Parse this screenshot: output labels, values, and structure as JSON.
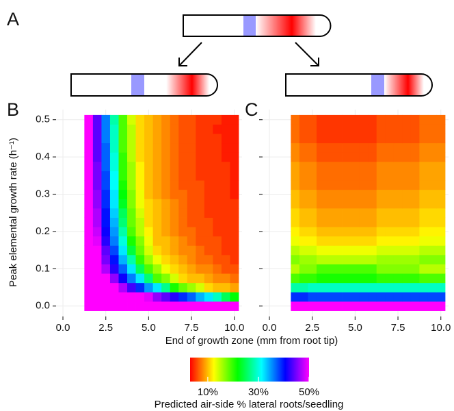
{
  "diagram": {
    "label": "A"
  },
  "xlabel": "End of growth zone (mm from root tip)",
  "ylabel": "Peak elemental growth rate (h⁻¹)",
  "colorbar": {
    "title": "Predicted air-side % lateral roots/seedling",
    "lim": [
      3,
      50
    ],
    "ticks": [
      {
        "value": 10,
        "label": "10%"
      },
      {
        "value": 30,
        "label": "30%"
      },
      {
        "value": 50,
        "label": "50%"
      }
    ],
    "colors": [
      "#ff0000",
      "#ffff00",
      "#00ff00",
      "#00ffff",
      "#0000ff",
      "#ff00ff"
    ]
  },
  "chart_data": [
    {
      "type": "heatmap",
      "panel_label": "B",
      "show_ytick_labels": true,
      "grid": true,
      "xlim": [
        -0.4,
        10.45
      ],
      "ylim": [
        -0.028,
        0.527
      ],
      "xticks": [
        {
          "value": 0,
          "label": "0.0"
        },
        2.5,
        {
          "value": 5,
          "label": "5.0"
        },
        7.5,
        {
          "value": 10,
          "label": "10.0"
        }
      ],
      "yticks": [
        {
          "value": 0,
          "label": "0.0"
        },
        0.1,
        0.2,
        0.3,
        0.4,
        0.5
      ],
      "x": [
        1.5,
        2,
        2.5,
        3,
        3.5,
        4,
        4.5,
        5,
        5.5,
        6,
        6.5,
        7,
        7.5,
        8,
        8.5,
        9,
        9.5,
        10
      ],
      "y": [
        0,
        0.025,
        0.05,
        0.075,
        0.1,
        0.125,
        0.15,
        0.175,
        0.2,
        0.225,
        0.25,
        0.275,
        0.3,
        0.325,
        0.35,
        0.375,
        0.4,
        0.425,
        0.45,
        0.475,
        0.5
      ],
      "z": [
        [
          50,
          50,
          50,
          50,
          50,
          50,
          50,
          50,
          50,
          50,
          50,
          50,
          50,
          50,
          50,
          50,
          50,
          50
        ],
        [
          50,
          50,
          50,
          50,
          50,
          50,
          50,
          49,
          46,
          44,
          42,
          39,
          37,
          34,
          32,
          29,
          25,
          22
        ],
        [
          50,
          50,
          50,
          50,
          47,
          43,
          39,
          35,
          32,
          27,
          21,
          18,
          16,
          14,
          11,
          10,
          10,
          9
        ],
        [
          50,
          50,
          50,
          46,
          41,
          36,
          32,
          26,
          19,
          17,
          14,
          11,
          10,
          10,
          9,
          8,
          8,
          7
        ],
        [
          50,
          50,
          47,
          42,
          37,
          32,
          25,
          19,
          16,
          13,
          11,
          10,
          9,
          8,
          8,
          7,
          6,
          6
        ],
        [
          50,
          50,
          45,
          40,
          34,
          28,
          20,
          16,
          13,
          11,
          10,
          9,
          8,
          7,
          7,
          6,
          6,
          5
        ],
        [
          50,
          50,
          44,
          38,
          32,
          24,
          18,
          14,
          11,
          10,
          9,
          8,
          8,
          7,
          6,
          6,
          5,
          5
        ],
        [
          50,
          49,
          42,
          36,
          30,
          21,
          17,
          13,
          10,
          10,
          9,
          8,
          7,
          6,
          6,
          6,
          5,
          5
        ],
        [
          50,
          48,
          41,
          35,
          28,
          19,
          15,
          12,
          10,
          9,
          8,
          7,
          7,
          6,
          6,
          5,
          5,
          5
        ],
        [
          50,
          47,
          40,
          34,
          26,
          18,
          15,
          11,
          10,
          9,
          8,
          7,
          6,
          6,
          6,
          5,
          5,
          5
        ],
        [
          50,
          47,
          40,
          33,
          25,
          18,
          14,
          11,
          10,
          9,
          8,
          7,
          6,
          6,
          5,
          5,
          5,
          5
        ],
        [
          50,
          46,
          39,
          32,
          23,
          17,
          13,
          11,
          10,
          9,
          8,
          7,
          6,
          6,
          5,
          5,
          5,
          5
        ],
        [
          50,
          46,
          39,
          32,
          22,
          17,
          13,
          10,
          9,
          8,
          7,
          7,
          6,
          6,
          5,
          5,
          5,
          4
        ],
        [
          50,
          45,
          38,
          31,
          21,
          16,
          12,
          10,
          9,
          8,
          7,
          6,
          6,
          6,
          5,
          5,
          5,
          4
        ],
        [
          50,
          45,
          38,
          31,
          20,
          16,
          12,
          10,
          9,
          8,
          7,
          6,
          6,
          5,
          5,
          5,
          5,
          4
        ],
        [
          50,
          45,
          37,
          30,
          20,
          16,
          12,
          10,
          9,
          8,
          7,
          6,
          6,
          5,
          5,
          5,
          5,
          4
        ],
        [
          50,
          44,
          37,
          30,
          20,
          15,
          11,
          10,
          9,
          8,
          7,
          6,
          6,
          5,
          5,
          5,
          4,
          4
        ],
        [
          50,
          44,
          37,
          29,
          19,
          15,
          11,
          10,
          9,
          8,
          7,
          6,
          6,
          5,
          5,
          5,
          4,
          4
        ],
        [
          50,
          44,
          36,
          29,
          19,
          15,
          11,
          10,
          9,
          8,
          7,
          6,
          6,
          5,
          5,
          5,
          4,
          4
        ],
        [
          50,
          44,
          36,
          29,
          19,
          15,
          11,
          10,
          9,
          8,
          7,
          6,
          6,
          5,
          5,
          4,
          4,
          4
        ],
        [
          50,
          44,
          36,
          28,
          19,
          14,
          11,
          10,
          9,
          8,
          7,
          6,
          6,
          5,
          5,
          5,
          4,
          4
        ]
      ]
    },
    {
      "type": "heatmap",
      "panel_label": "C",
      "show_ytick_labels": false,
      "grid": true,
      "xlim": [
        -0.4,
        10.45
      ],
      "ylim": [
        -0.028,
        0.527
      ],
      "xticks": [
        {
          "value": 0,
          "label": "0.0"
        },
        2.5,
        {
          "value": 5,
          "label": "5.0"
        },
        7.5,
        {
          "value": 10,
          "label": "10.0"
        }
      ],
      "yticks": [
        0,
        0.1,
        0.2,
        0.3,
        0.4,
        0.5
      ],
      "x": [
        1.5,
        2,
        2.5,
        3,
        3.5,
        4,
        4.5,
        5,
        5.5,
        6,
        6.5,
        7,
        7.5,
        8,
        8.5,
        9,
        9.5,
        10
      ],
      "y": [
        0,
        0.025,
        0.05,
        0.075,
        0.1,
        0.125,
        0.15,
        0.175,
        0.2,
        0.225,
        0.25,
        0.275,
        0.3,
        0.325,
        0.35,
        0.375,
        0.4,
        0.425,
        0.45,
        0.475,
        0.5
      ],
      "z": [
        [
          50,
          50,
          50,
          50,
          50,
          50,
          50,
          50,
          50,
          50,
          50,
          50,
          50,
          50,
          50,
          50,
          50,
          50
        ],
        [
          39,
          39,
          38,
          38,
          38,
          38,
          38,
          38,
          38,
          38,
          38,
          38,
          38,
          38,
          38,
          38,
          38,
          38
        ],
        [
          28,
          28,
          29,
          29,
          29,
          29,
          29,
          29,
          29,
          29,
          29,
          29,
          29,
          29,
          29,
          29,
          29,
          29
        ],
        [
          19,
          20,
          20,
          21,
          21,
          21,
          21,
          21,
          21,
          21,
          20,
          20,
          20,
          20,
          20,
          19,
          19,
          19
        ],
        [
          15,
          17,
          17,
          19,
          19,
          19,
          19,
          19,
          19,
          19,
          17,
          17,
          17,
          17,
          17,
          15,
          15,
          15
        ],
        [
          17,
          16,
          16,
          15,
          15,
          15,
          15,
          15,
          15,
          15,
          16,
          16,
          16,
          16,
          16,
          17,
          17,
          17
        ],
        [
          15,
          14,
          14,
          13,
          13,
          13,
          13,
          13,
          13,
          13,
          14,
          14,
          14,
          14,
          14,
          15,
          15,
          15
        ],
        [
          13,
          12,
          12,
          11,
          11,
          11,
          11,
          11,
          11,
          11,
          12,
          12,
          12,
          12,
          12,
          13,
          13,
          13
        ],
        [
          12,
          11,
          11,
          10,
          10,
          10,
          10,
          10,
          10,
          10,
          11,
          11,
          11,
          11,
          11,
          12,
          12,
          12
        ],
        [
          11,
          10,
          10,
          9,
          9,
          9,
          9,
          9,
          9,
          9,
          10,
          10,
          10,
          10,
          10,
          11,
          11,
          11
        ],
        [
          11,
          10,
          10,
          9,
          9,
          9,
          9,
          9,
          9,
          9,
          10,
          10,
          10,
          10,
          10,
          11,
          11,
          11
        ],
        [
          10,
          9,
          9,
          8,
          8,
          8,
          8,
          8,
          8,
          8,
          9,
          9,
          9,
          9,
          9,
          10,
          10,
          10
        ],
        [
          10,
          9,
          9,
          8,
          8,
          8,
          8,
          8,
          8,
          8,
          9,
          9,
          9,
          9,
          9,
          10,
          10,
          10
        ],
        [
          9,
          8,
          8,
          7,
          7,
          7,
          7,
          7,
          7,
          7,
          8,
          8,
          8,
          8,
          8,
          9,
          9,
          9
        ],
        [
          9,
          8,
          8,
          7,
          7,
          7,
          7,
          7,
          7,
          7,
          8,
          8,
          8,
          8,
          8,
          9,
          9,
          9
        ],
        [
          9,
          8,
          8,
          7,
          7,
          7,
          7,
          7,
          7,
          7,
          8,
          8,
          8,
          8,
          8,
          9,
          9,
          9
        ],
        [
          8,
          7,
          7,
          6,
          6,
          6,
          6,
          6,
          6,
          6,
          7,
          7,
          7,
          7,
          7,
          8,
          8,
          8
        ],
        [
          8,
          7,
          7,
          6,
          6,
          6,
          6,
          6,
          6,
          6,
          7,
          7,
          7,
          7,
          7,
          8,
          8,
          8
        ],
        [
          7,
          6,
          6,
          5,
          5,
          5,
          5,
          5,
          5,
          5,
          6,
          6,
          6,
          6,
          6,
          7,
          7,
          7
        ],
        [
          7,
          6,
          6,
          5,
          5,
          5,
          5,
          5,
          5,
          5,
          6,
          6,
          6,
          6,
          6,
          7,
          7,
          7
        ],
        [
          7,
          6,
          6,
          5,
          5,
          5,
          5,
          5,
          5,
          5,
          6,
          6,
          6,
          6,
          6,
          7,
          7,
          7
        ]
      ]
    }
  ]
}
